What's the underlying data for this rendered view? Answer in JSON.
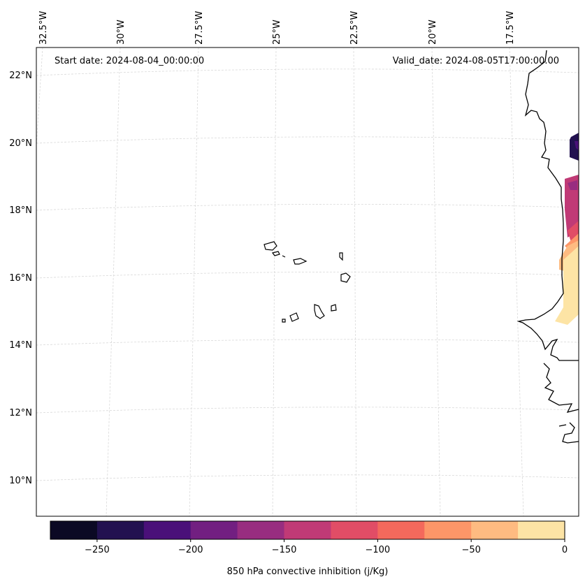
{
  "header": {
    "start_date": "Start date: 2024-08-04_00:00:00",
    "valid_date": "Valid_date: 2024-08-05T17:00:00.00"
  },
  "lon_labels": [
    "32.5°W",
    "30°W",
    "27.5°W",
    "25°W",
    "22.5°W",
    "20°W",
    "17.5°W"
  ],
  "lat_labels": [
    "22°N",
    "20°N",
    "18°N",
    "16°N",
    "14°N",
    "12°N",
    "10°N"
  ],
  "colorbar": {
    "label": "850 hPa convective inhibition (j/Kg)",
    "bounds": [
      -275,
      -250,
      -225,
      -200,
      -175,
      -150,
      -125,
      -100,
      -75,
      -50,
      -25,
      0
    ],
    "colors": [
      "#0b0924",
      "#221150",
      "#4a1079",
      "#721f81",
      "#982d80",
      "#c03a76",
      "#e14d66",
      "#f4695c",
      "#fd9668",
      "#febb81",
      "#fde4a5"
    ],
    "tick_values": [
      -250,
      -200,
      -150,
      -100,
      -50,
      0
    ],
    "tick_labels": [
      "−250",
      "−200",
      "−150",
      "−100",
      "−50",
      "0"
    ]
  }
}
